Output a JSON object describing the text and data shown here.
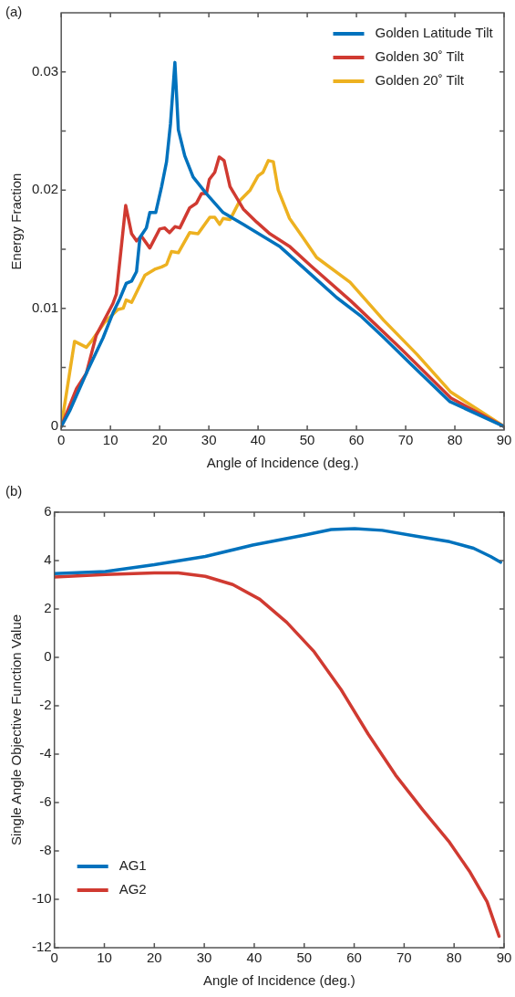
{
  "chart_data": [
    {
      "type": "line",
      "annotations": [
        "(a)"
      ],
      "xlabel": "Angle of Incidence (deg.)",
      "ylabel": "Energy Fraction",
      "xlim": [
        0,
        90
      ],
      "xticks": [
        0,
        10,
        20,
        30,
        40,
        50,
        60,
        70,
        80,
        90
      ],
      "ylim": [
        -0.0003,
        0.035
      ],
      "yticks": [
        0,
        {
          "value": 0.005,
          "label": null
        },
        0.01,
        {
          "value": 0.015,
          "label": null
        },
        0.02,
        {
          "value": 0.025,
          "label": null
        },
        0.03
      ],
      "grid": false,
      "legend": "top right",
      "marker": "none",
      "line_style": "solid",
      "series": [
        {
          "name": "Golden Latitude Tilt",
          "color": "#0072bd",
          "x": [
            0,
            1.7,
            5.1,
            8.5,
            10.5,
            11.9,
            13.2,
            14.3,
            15.3,
            16,
            17.3,
            18,
            19.2,
            20.4,
            21.4,
            22.2,
            23.1,
            23.8,
            25.1,
            26.8,
            29.5,
            32.9,
            37,
            44.5,
            52,
            56,
            61,
            65.6,
            71,
            79,
            90
          ],
          "values": [
            0,
            0.0013,
            0.0045,
            0.0075,
            0.0096,
            0.0108,
            0.0121,
            0.0123,
            0.0131,
            0.016,
            0.0168,
            0.0181,
            0.0181,
            0.0203,
            0.0224,
            0.0256,
            0.0308,
            0.0251,
            0.0229,
            0.0211,
            0.0197,
            0.0181,
            0.0171,
            0.0152,
            0.0124,
            0.0109,
            0.0093,
            0.0075,
            0.0053,
            0.0021,
            0
          ]
        },
        {
          "name": "Golden 30˚ Tilt",
          "color": "#d03a31",
          "x": [
            0,
            3.1,
            5.1,
            7.1,
            10.5,
            11.2,
            13.1,
            14.3,
            15.3,
            16.3,
            18,
            20,
            21,
            22,
            23.1,
            24.1,
            26.1,
            27.5,
            28.5,
            29.5,
            30.1,
            31.2,
            32.1,
            33.1,
            34.3,
            37,
            39.7,
            42.4,
            46.5,
            50.7,
            58.9,
            69,
            79.2,
            90
          ],
          "values": [
            0,
            0.0032,
            0.0045,
            0.0077,
            0.0104,
            0.0112,
            0.0187,
            0.0163,
            0.0157,
            0.0161,
            0.0151,
            0.0167,
            0.0168,
            0.0164,
            0.0169,
            0.0168,
            0.0185,
            0.0189,
            0.0197,
            0.0197,
            0.0209,
            0.0215,
            0.0228,
            0.0225,
            0.0203,
            0.0184,
            0.0173,
            0.0163,
            0.0152,
            0.0136,
            0.0106,
            0.0066,
            0.0024,
            0
          ]
        },
        {
          "name": "Golden 20˚ Tilt",
          "color": "#edb120",
          "x": [
            0,
            2.7,
            5.1,
            6.1,
            8.8,
            11.5,
            12.6,
            13.2,
            14.3,
            17,
            19,
            20.4,
            21.4,
            22.4,
            23.8,
            26.1,
            27.8,
            30.2,
            31.2,
            32.2,
            32.9,
            34.3,
            36.3,
            38.4,
            40,
            41,
            42.1,
            43.1,
            44.1,
            46.4,
            49.1,
            51.9,
            58.7,
            65.5,
            72.3,
            79.2,
            90
          ],
          "values": [
            0,
            0.0072,
            0.0067,
            0.0072,
            0.0088,
            0.0099,
            0.01,
            0.0107,
            0.0105,
            0.0128,
            0.0133,
            0.0135,
            0.0137,
            0.0148,
            0.0147,
            0.0164,
            0.0163,
            0.0177,
            0.0177,
            0.0171,
            0.0176,
            0.0175,
            0.0191,
            0.02,
            0.0212,
            0.0215,
            0.0225,
            0.0224,
            0.02,
            0.0176,
            0.016,
            0.0143,
            0.0122,
            0.009,
            0.0061,
            0.0029,
            0
          ]
        }
      ]
    },
    {
      "type": "line",
      "annotations": [
        "(b)"
      ],
      "xlabel": "Angle of Incidence (deg.)",
      "ylabel": "Single Angle Objective Function Value",
      "xlim": [
        0,
        90
      ],
      "xticks": [
        0,
        10,
        20,
        30,
        40,
        50,
        60,
        70,
        80,
        90
      ],
      "ylim": [
        -12,
        6
      ],
      "yticks": [
        -12,
        -10,
        -8,
        -6,
        -4,
        -2,
        0,
        2,
        4,
        6
      ],
      "grid": false,
      "legend": "bottom left",
      "marker": "none",
      "line_style": "solid",
      "series": [
        {
          "name": "AG1",
          "color": "#0072bd",
          "x": [
            0,
            10.2,
            20,
            30.2,
            39.7,
            49.9,
            55.4,
            60.1,
            65.6,
            72.4,
            79.1,
            83.9,
            87.3,
            89.3
          ],
          "values": [
            3.46,
            3.55,
            3.83,
            4.17,
            4.64,
            5.05,
            5.28,
            5.32,
            5.25,
            5.01,
            4.78,
            4.51,
            4.17,
            3.93
          ]
        },
        {
          "name": "AG2",
          "color": "#d03a31",
          "x": [
            0,
            10.2,
            20,
            24.8,
            30.2,
            35.7,
            41.1,
            46.5,
            52,
            57.4,
            62.8,
            68.3,
            73.7,
            79.1,
            83.2,
            86.6,
            89
          ],
          "values": [
            3.32,
            3.42,
            3.49,
            3.49,
            3.35,
            3.01,
            2.4,
            1.45,
            0.23,
            -1.34,
            -3.17,
            -4.87,
            -6.3,
            -7.65,
            -8.88,
            -10.1,
            -11.53
          ]
        }
      ]
    }
  ]
}
